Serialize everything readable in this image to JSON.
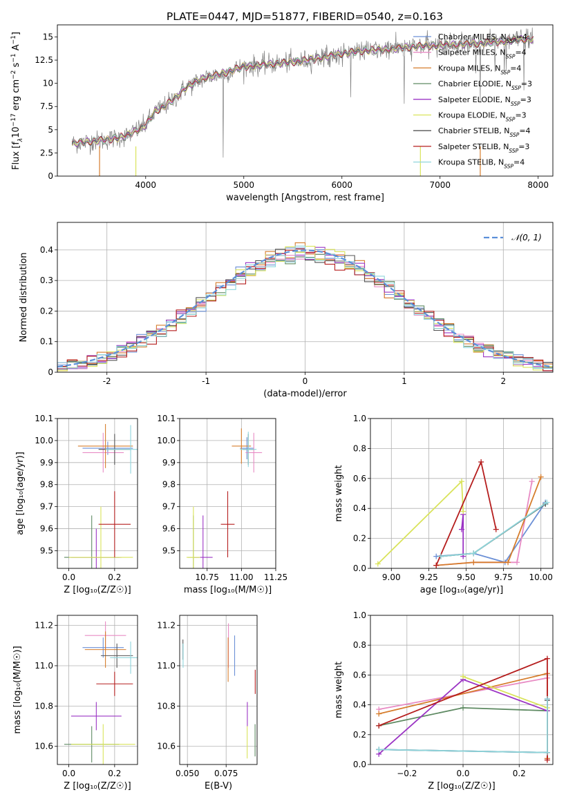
{
  "title": "PLATE=0447, MJD=51877, FIBERID=0540, z=0.163",
  "models": [
    {
      "name": "Chabrier MILES",
      "nssp": "4",
      "color": "#6b8fd6"
    },
    {
      "name": "Salpeter MILES",
      "nssp": "4",
      "color": "#e88bc4"
    },
    {
      "name": "Kroupa MILES",
      "nssp": "4",
      "color": "#d67d2c"
    },
    {
      "name": "Chabrier ELODIE",
      "nssp": "3",
      "color": "#5e8a62"
    },
    {
      "name": "Salpeter ELODIE",
      "nssp": "3",
      "color": "#9b34c4"
    },
    {
      "name": "Kroupa ELODIE",
      "nssp": "3",
      "color": "#d9e35a"
    },
    {
      "name": "Chabrier STELIB",
      "nssp": "4",
      "color": "#555555"
    },
    {
      "name": "Salpeter STELIB",
      "nssp": "3",
      "color": "#b51d1d"
    },
    {
      "name": "Kroupa STELIB",
      "nssp": "4",
      "color": "#8fd6dc"
    }
  ],
  "chart_data": [
    {
      "id": "spectrum",
      "type": "line",
      "xlabel": "wavelength [Angstrom, rest frame]",
      "ylabel_parts": [
        "Flux [f",
        "λ",
        "10",
        "−17",
        " erg cm",
        "−2",
        " s",
        "−1",
        " A",
        "−1",
        "]"
      ],
      "xlim": [
        3100,
        8150
      ],
      "ylim": [
        0,
        16.3
      ],
      "xticks": [
        4000,
        5000,
        6000,
        7000,
        8000
      ],
      "yticks": [
        0.0,
        2.5,
        5.0,
        7.5,
        10.0,
        12.5,
        15.0
      ],
      "observed_color": "#808080",
      "continuum": {
        "x": [
          3250,
          3400,
          3600,
          3800,
          4000,
          4100,
          4200,
          4300,
          4400,
          4600,
          4800,
          5000,
          5200,
          5400,
          5600,
          5800,
          6000,
          6200,
          6400,
          6600,
          6800,
          7000,
          7200,
          7400,
          7600,
          7800,
          7950
        ],
        "y": [
          3.5,
          3.7,
          3.9,
          4.3,
          5.5,
          7.0,
          7.6,
          8.4,
          9.5,
          10.6,
          11.1,
          11.8,
          12.0,
          12.2,
          12.4,
          12.8,
          13.2,
          13.5,
          13.6,
          13.8,
          14.0,
          14.1,
          14.2,
          14.3,
          14.5,
          14.7,
          14.8
        ]
      }
    },
    {
      "id": "residuals",
      "type": "histogram",
      "xlabel": "(data-model)/error",
      "ylabel": "Normed distribution",
      "legend_label": "𝒩(0, 1)",
      "xlim": [
        -2.5,
        2.5
      ],
      "ylim": [
        0,
        0.49
      ],
      "xticks": [
        -2,
        -1,
        0,
        1,
        2
      ],
      "yticks": [
        0.0,
        0.1,
        0.2,
        0.3,
        0.4
      ],
      "bin_width": 0.1,
      "gauss_color": "#5b8fd9"
    },
    {
      "id": "age_Z",
      "type": "scatter",
      "xlabel": "Z [log₁₀(Z/Z☉)]",
      "ylabel": "age  [log₁₀(age/yr)]",
      "xlim": [
        -0.05,
        0.3
      ],
      "ylim": [
        9.42,
        10.1
      ],
      "xticks": [
        0.0,
        0.2
      ],
      "yticks": [
        9.5,
        9.6,
        9.7,
        9.8,
        9.9,
        10.0,
        10.1
      ],
      "xticklabels": [
        "0.0",
        "0.2"
      ],
      "yticklabels": [
        "9.5",
        "9.6",
        "9.7",
        "9.8",
        "9.9",
        "10.0",
        "10.1"
      ],
      "points": [
        {
          "m": 0,
          "x": 0.17,
          "y": 9.965,
          "xe": 0.11,
          "ye": 0.03
        },
        {
          "m": 1,
          "x": 0.15,
          "y": 9.945,
          "xe": 0.09,
          "ye": 0.09
        },
        {
          "m": 2,
          "x": 0.16,
          "y": 9.975,
          "xe": 0.12,
          "ye": 0.1
        },
        {
          "m": 3,
          "x": 0.1,
          "y": 9.47,
          "xe": 0.12,
          "ye": 0.19
        },
        {
          "m": 4,
          "x": 0.12,
          "y": 9.47,
          "xe": 0.11,
          "ye": 0.13
        },
        {
          "m": 5,
          "x": 0.14,
          "y": 9.47,
          "xe": 0.14,
          "ye": 0.23
        },
        {
          "m": 6,
          "x": 0.2,
          "y": 9.96,
          "xe": 0.07,
          "ye": 0.07
        },
        {
          "m": 7,
          "x": 0.2,
          "y": 9.62,
          "xe": 0.07,
          "ye": 0.15
        },
        {
          "m": 8,
          "x": 0.27,
          "y": 9.96,
          "xe": 0.11,
          "ye": 0.11
        }
      ]
    },
    {
      "id": "age_mass",
      "type": "scatter",
      "xlabel": "mass [log₁₀(M/M☉)]",
      "ylabel": "",
      "xlim": [
        10.55,
        11.25
      ],
      "ylim": [
        9.42,
        10.1
      ],
      "xticks": [
        10.75,
        11.0,
        11.25
      ],
      "yticks": [
        9.5,
        9.6,
        9.7,
        9.8,
        9.9,
        10.0,
        10.1
      ],
      "xticklabels": [
        "10.75",
        "11.00",
        "11.25"
      ],
      "yticklabels": [
        "9.5",
        "9.6",
        "9.7",
        "9.8",
        "9.9",
        "10.0",
        "10.1"
      ],
      "points": [
        {
          "m": 0,
          "x": 11.04,
          "y": 9.965,
          "xe": 0.05,
          "ye": 0.05
        },
        {
          "m": 1,
          "x": 11.09,
          "y": 9.945,
          "xe": 0.06,
          "ye": 0.09
        },
        {
          "m": 2,
          "x": 11.0,
          "y": 9.975,
          "xe": 0.07,
          "ye": 0.08
        },
        {
          "m": 3,
          "x": 10.65,
          "y": 9.47,
          "xe": 0.04,
          "ye": 0.19
        },
        {
          "m": 4,
          "x": 10.72,
          "y": 9.47,
          "xe": 0.07,
          "ye": 0.19
        },
        {
          "m": 5,
          "x": 10.65,
          "y": 9.47,
          "xe": 0.05,
          "ye": 0.23
        },
        {
          "m": 6,
          "x": 11.05,
          "y": 9.96,
          "xe": 0.04,
          "ye": 0.07
        },
        {
          "m": 7,
          "x": 10.9,
          "y": 9.62,
          "xe": 0.05,
          "ye": 0.15
        },
        {
          "m": 8,
          "x": 11.05,
          "y": 9.96,
          "xe": 0.06,
          "ye": 0.08
        }
      ]
    },
    {
      "id": "weight_age",
      "type": "line",
      "xlabel": "age  [log₁₀(age/yr)]",
      "ylabel": "mass weight",
      "xlim": [
        8.86,
        10.08
      ],
      "ylim": [
        0,
        1.0
      ],
      "xticks": [
        9.0,
        9.25,
        9.5,
        9.75,
        10.0
      ],
      "yticks": [
        0.0,
        0.2,
        0.4,
        0.6,
        0.8,
        1.0
      ],
      "xticklabels": [
        "9.00",
        "9.25",
        "9.50",
        "9.75",
        "10.00"
      ],
      "yticklabels": [
        "0.0",
        "0.2",
        "0.4",
        "0.6",
        "0.8",
        "1.0"
      ],
      "series": [
        {
          "m": 0,
          "x": [
            9.3,
            9.55,
            9.76,
            10.03
          ],
          "y": [
            0.08,
            0.1,
            0.04,
            0.44
          ]
        },
        {
          "m": 1,
          "x": [
            9.3,
            9.55,
            9.84,
            9.94
          ],
          "y": [
            0.02,
            0.04,
            0.04,
            0.58
          ]
        },
        {
          "m": 2,
          "x": [
            9.3,
            9.55,
            9.78,
            10.0
          ],
          "y": [
            0.02,
            0.04,
            0.04,
            0.61
          ]
        },
        {
          "m": 3,
          "x": [
            9.33,
            9.55,
            10.03
          ],
          "y": [
            0.08,
            0.1,
            0.43
          ]
        },
        {
          "m": 4,
          "x": [
            9.47,
            9.48,
            9.48
          ],
          "y": [
            0.26,
            0.36,
            0.08
          ]
        },
        {
          "m": 5,
          "x": [
            8.91,
            9.47,
            9.48
          ],
          "y": [
            0.03,
            0.58,
            0.38
          ]
        },
        {
          "m": 6,
          "x": [
            9.33,
            9.55,
            10.03
          ],
          "y": [
            0.08,
            0.1,
            0.43
          ]
        },
        {
          "m": 7,
          "x": [
            9.3,
            9.6,
            9.7
          ],
          "y": [
            0.02,
            0.71,
            0.26
          ]
        },
        {
          "m": 8,
          "x": [
            9.33,
            9.55,
            10.04
          ],
          "y": [
            0.08,
            0.1,
            0.44
          ]
        }
      ]
    },
    {
      "id": "mass_Z",
      "type": "scatter",
      "xlabel": "Z [log₁₀(Z/Z☉)]",
      "ylabel": "mass [log₁₀(M/M☉)]",
      "xlim": [
        -0.05,
        0.3
      ],
      "ylim": [
        10.51,
        11.25
      ],
      "xticks": [
        0.0,
        0.2
      ],
      "yticks": [
        10.6,
        10.8,
        11.0,
        11.2
      ],
      "xticklabels": [
        "0.0",
        "0.2"
      ],
      "yticklabels": [
        "10.6",
        "10.8",
        "11.0",
        "11.2"
      ],
      "points": [
        {
          "m": 0,
          "x": 0.15,
          "y": 11.09,
          "xe": 0.09,
          "ye": 0.05
        },
        {
          "m": 1,
          "x": 0.16,
          "y": 11.15,
          "xe": 0.09,
          "ye": 0.07
        },
        {
          "m": 2,
          "x": 0.16,
          "y": 11.08,
          "xe": 0.09,
          "ye": 0.09
        },
        {
          "m": 3,
          "x": 0.1,
          "y": 10.61,
          "xe": 0.12,
          "ye": 0.09
        },
        {
          "m": 4,
          "x": 0.12,
          "y": 10.75,
          "xe": 0.11,
          "ye": 0.07
        },
        {
          "m": 5,
          "x": 0.15,
          "y": 10.61,
          "xe": 0.14,
          "ye": 0.1
        },
        {
          "m": 6,
          "x": 0.21,
          "y": 11.05,
          "xe": 0.07,
          "ye": 0.06
        },
        {
          "m": 7,
          "x": 0.2,
          "y": 10.91,
          "xe": 0.08,
          "ye": 0.06
        },
        {
          "m": 8,
          "x": 0.27,
          "y": 11.04,
          "xe": 0.09,
          "ye": 0.08
        }
      ]
    },
    {
      "id": "mass_ebv",
      "type": "scatter",
      "xlabel": "E(B-V)",
      "ylabel": "",
      "xlim": [
        0.045,
        0.095
      ],
      "ylim": [
        10.51,
        11.25
      ],
      "xticks": [
        0.05,
        0.075
      ],
      "yticks": [
        10.6,
        10.8,
        11.0,
        11.2
      ],
      "xticklabels": [
        "0.050",
        "0.075"
      ],
      "yticklabels": [
        "10.6",
        "10.8",
        "11.0",
        "11.2"
      ],
      "points": [
        {
          "m": 0,
          "x": 0.0805,
          "y": 11.05,
          "xe": 0,
          "ye": 0.1
        },
        {
          "m": 1,
          "x": 0.0765,
          "y": 11.1,
          "xe": 0,
          "ye": 0.11
        },
        {
          "m": 2,
          "x": 0.0763,
          "y": 11.03,
          "xe": 0,
          "ye": 0.11
        },
        {
          "m": 3,
          "x": 0.0937,
          "y": 10.63,
          "xe": 0,
          "ye": 0.08
        },
        {
          "m": 4,
          "x": 0.0887,
          "y": 10.76,
          "xe": 0,
          "ye": 0.06
        },
        {
          "m": 5,
          "x": 0.0886,
          "y": 10.62,
          "xe": 0,
          "ye": 0.08
        },
        {
          "m": 6,
          "x": 0.0471,
          "y": 11.08,
          "xe": 0,
          "ye": 0.05
        },
        {
          "m": 7,
          "x": 0.0938,
          "y": 10.92,
          "xe": 0,
          "ye": 0.06
        },
        {
          "m": 8,
          "x": 0.0472,
          "y": 11.05,
          "xe": 0,
          "ye": 0.06
        }
      ]
    },
    {
      "id": "weight_Z",
      "type": "line",
      "xlabel": "Z [log₁₀(Z/Z☉)]",
      "ylabel": "mass weight",
      "xlim": [
        -0.33,
        0.32
      ],
      "ylim": [
        0,
        1.0
      ],
      "xticks": [
        -0.2,
        0.0,
        0.2
      ],
      "yticks": [
        0.0,
        0.2,
        0.4,
        0.6,
        0.8,
        1.0
      ],
      "xticklabels": [
        "−0.2",
        "0.0",
        "0.2"
      ],
      "yticklabels": [
        "0.0",
        "0.2",
        "0.4",
        "0.6",
        "0.8",
        "1.0"
      ],
      "series": [
        {
          "m": 0,
          "x": [
            -0.3,
            0.3,
            0.3
          ],
          "y": [
            0.1,
            0.08,
            0.44
          ]
        },
        {
          "m": 1,
          "x": [
            -0.3,
            0.3,
            0.3
          ],
          "y": [
            0.37,
            0.58,
            0.04
          ]
        },
        {
          "m": 2,
          "x": [
            -0.3,
            0.3,
            0.3
          ],
          "y": [
            0.34,
            0.61,
            0.04
          ]
        },
        {
          "m": 3,
          "x": [
            -0.3,
            0.0,
            0.3
          ],
          "y": [
            0.26,
            0.38,
            0.36
          ]
        },
        {
          "m": 4,
          "x": [
            -0.3,
            0.0,
            0.3
          ],
          "y": [
            0.07,
            0.57,
            0.36
          ]
        },
        {
          "m": 5,
          "x": [
            0.0,
            0.3
          ],
          "y": [
            0.59,
            0.38
          ]
        },
        {
          "m": 6,
          "x": [
            -0.3,
            0.3,
            0.3
          ],
          "y": [
            0.1,
            0.08,
            0.43
          ]
        },
        {
          "m": 7,
          "x": [
            -0.3,
            0.3,
            0.3
          ],
          "y": [
            0.26,
            0.71,
            0.03
          ]
        },
        {
          "m": 8,
          "x": [
            -0.3,
            0.3,
            0.3
          ],
          "y": [
            0.1,
            0.08,
            0.44
          ]
        }
      ]
    }
  ]
}
